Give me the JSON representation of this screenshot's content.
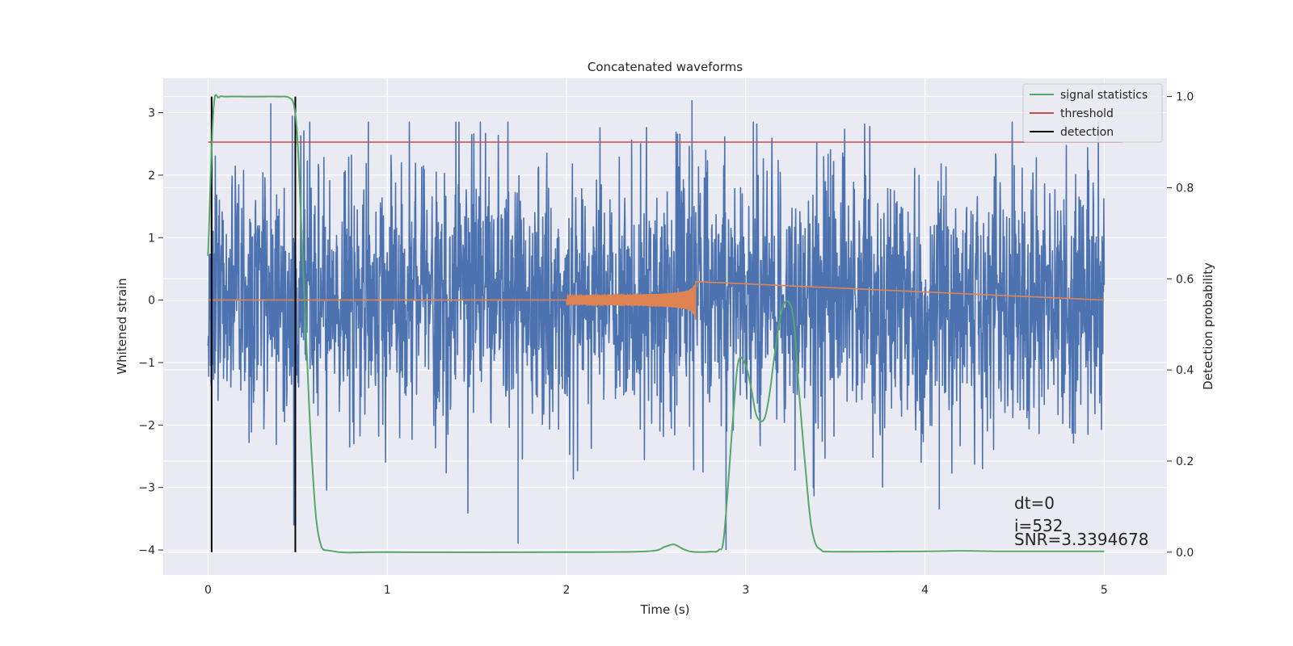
{
  "chart_data": {
    "type": "line",
    "title": "Concatenated waveforms",
    "xlabel": "Time (s)",
    "ylabel": "Whitened strain",
    "y2label": "Detection probability",
    "xlim": [
      -0.25,
      5.35
    ],
    "ylim": [
      -4.4,
      3.55
    ],
    "y2lim": [
      -0.05,
      1.04
    ],
    "x_ticks": [
      0,
      1,
      2,
      3,
      4,
      5
    ],
    "x_tick_labels": [
      "0",
      "1",
      "2",
      "3",
      "4",
      "5"
    ],
    "y_ticks": [
      -4,
      -3,
      -2,
      -1,
      0,
      1,
      2,
      3
    ],
    "y_tick_labels": [
      "−4",
      "−3",
      "−2",
      "−1",
      "0",
      "1",
      "2",
      "3"
    ],
    "y2_ticks": [
      0.0,
      0.2,
      0.4,
      0.6,
      0.8,
      1.0
    ],
    "y2_tick_labels": [
      "0.0",
      "0.2",
      "0.4",
      "0.6",
      "0.8",
      "1.0"
    ],
    "grid": true,
    "legend_position": "top-right",
    "legend": [
      {
        "label": "signal statistics",
        "color": "#55a868"
      },
      {
        "label": "threshold",
        "color": "#c44e52"
      },
      {
        "label": "detection",
        "color": "#000000"
      }
    ],
    "series": [
      {
        "role": "strain",
        "color": "#4c72b0",
        "x_range": [
          0,
          5
        ],
        "envelope_max": 3.2,
        "envelope_min": -3.9,
        "notable_spikes": [
          {
            "x": 0.35,
            "y": 3.15
          },
          {
            "x": 0.47,
            "y": 2.95
          },
          {
            "x": 1.73,
            "y": -3.9
          },
          {
            "x": 2.7,
            "y": 3.2
          },
          {
            "x": 2.89,
            "y": -4.0
          },
          {
            "x": 4.08,
            "y": -3.35
          }
        ]
      },
      {
        "role": "injected chirp",
        "color": "#dd8452",
        "x_range": [
          0,
          5
        ],
        "chirp_start": 2.0,
        "chirp_end": 2.72,
        "chirp_peak_amplitude": 0.42
      },
      {
        "name": "signal statistics",
        "color": "#55a868",
        "axis": "right",
        "x": [
          0.0,
          0.03,
          0.06,
          0.1,
          0.2,
          0.3,
          0.4,
          0.45,
          0.48,
          0.5,
          0.52,
          0.55,
          0.58,
          0.62,
          0.7,
          1.0,
          2.0,
          2.45,
          2.55,
          2.6,
          2.65,
          2.7,
          2.8,
          2.85,
          2.88,
          2.93,
          2.96,
          3.0,
          3.03,
          3.06,
          3.1,
          3.13,
          3.16,
          3.2,
          3.24,
          3.27,
          3.3,
          3.35,
          3.38,
          3.42,
          3.5,
          4.0,
          4.2,
          4.4,
          5.0
        ],
        "values": [
          0.65,
          0.97,
          0.998,
          1.0,
          1.0,
          1.0,
          1.0,
          0.998,
          0.98,
          0.9,
          0.72,
          0.45,
          0.2,
          0.03,
          0.002,
          0.0,
          0.0,
          0.002,
          0.012,
          0.017,
          0.007,
          0.001,
          0.001,
          0.005,
          0.04,
          0.3,
          0.42,
          0.41,
          0.36,
          0.3,
          0.29,
          0.34,
          0.43,
          0.53,
          0.55,
          0.5,
          0.34,
          0.11,
          0.03,
          0.005,
          0.001,
          0.002,
          0.003,
          0.002,
          0.002
        ]
      },
      {
        "name": "threshold",
        "color": "#c44e52",
        "axis": "right",
        "x": [
          0.0,
          5.1
        ],
        "values": [
          0.9,
          0.9
        ]
      },
      {
        "name": "detection",
        "color": "#000000",
        "type": "vlines",
        "x": [
          0.02,
          0.487
        ],
        "axis": "right",
        "ymin": 0.0,
        "ymax": 1.0
      }
    ],
    "annotations": [
      "dt=0",
      "i=532",
      "SNR=3.3394678"
    ]
  }
}
